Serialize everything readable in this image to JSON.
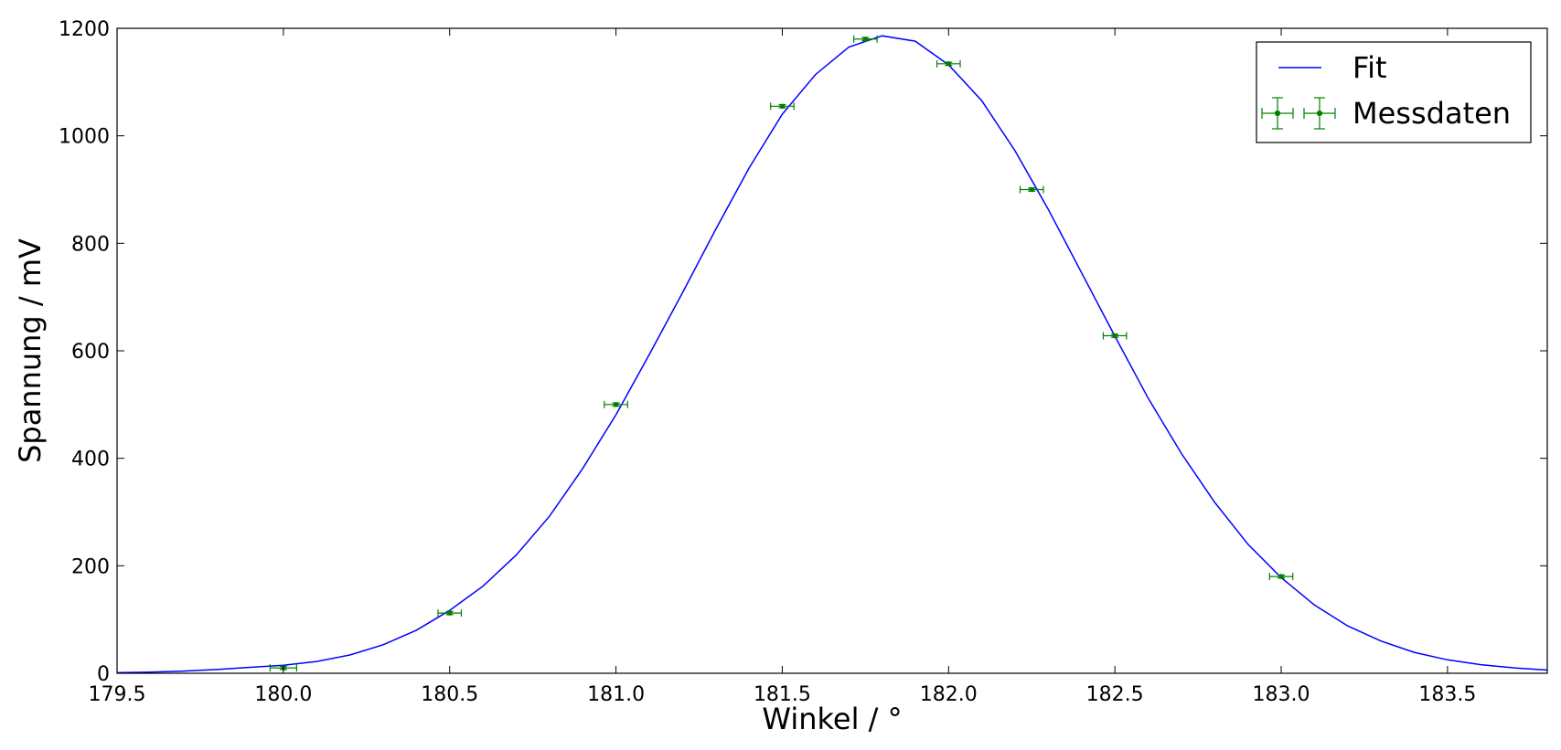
{
  "chart_data": {
    "type": "line+errorbar",
    "xlabel": "Winkel / °",
    "ylabel": "Spannung / mV",
    "xlim": [
      179.5,
      183.8
    ],
    "ylim": [
      0,
      1200
    ],
    "xticks": [
      179.5,
      180.0,
      180.5,
      181.0,
      181.5,
      182.0,
      182.5,
      183.0,
      183.5
    ],
    "xtick_labels": [
      "179.5",
      "180.0",
      "180.5",
      "181.0",
      "181.5",
      "182.0",
      "182.5",
      "183.0",
      "183.5"
    ],
    "yticks": [
      0,
      200,
      400,
      600,
      800,
      1000,
      1200
    ],
    "ytick_labels": [
      "0",
      "200",
      "400",
      "600",
      "800",
      "1000",
      "1200"
    ],
    "grid": false,
    "legend": {
      "position": "top-right",
      "entries": [
        "Fit",
        "Messdaten"
      ]
    },
    "series": [
      {
        "name": "Fit",
        "kind": "line",
        "color": "#0000ff",
        "x": [
          179.5,
          179.6,
          179.7,
          179.8,
          179.9,
          180.0,
          180.1,
          180.2,
          180.3,
          180.4,
          180.5,
          180.6,
          180.7,
          180.8,
          180.9,
          181.0,
          181.1,
          181.2,
          181.3,
          181.4,
          181.5,
          181.6,
          181.7,
          181.8,
          181.9,
          182.0,
          182.1,
          182.2,
          182.3,
          182.4,
          182.5,
          182.6,
          182.7,
          182.8,
          182.9,
          183.0,
          183.1,
          183.2,
          183.3,
          183.4,
          183.5,
          183.6,
          183.7,
          183.8
        ],
        "y": [
          1,
          2,
          4,
          7,
          11,
          15,
          22,
          34,
          53,
          80,
          117,
          162,
          220,
          292,
          381,
          481,
          593,
          708,
          826,
          940,
          1040,
          1114,
          1165,
          1186,
          1176,
          1132,
          1065,
          972,
          863,
          745,
          627,
          512,
          409,
          318,
          240,
          178,
          127,
          88,
          60,
          39,
          25,
          16,
          10,
          6
        ]
      },
      {
        "name": "Messdaten",
        "kind": "errorbar",
        "color": "#008000",
        "x": [
          180.0,
          180.5,
          181.0,
          181.5,
          181.75,
          182.0,
          182.25,
          182.5,
          183.0
        ],
        "y": [
          10,
          112,
          500,
          1055,
          1180,
          1134,
          900,
          628,
          180
        ],
        "xerr": [
          0.04,
          0.035,
          0.035,
          0.035,
          0.035,
          0.035,
          0.035,
          0.035,
          0.035
        ],
        "yerr": [
          3,
          3,
          3,
          3,
          3,
          3,
          3,
          3,
          3
        ]
      }
    ]
  }
}
